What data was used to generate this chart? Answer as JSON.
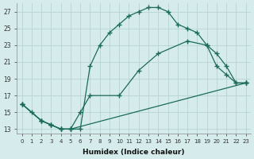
{
  "xlabel": "Humidex (Indice chaleur)",
  "bg_color": "#d6ecec",
  "grid_color": "#b8d4d4",
  "line_color": "#1a6b5a",
  "xlim": [
    -0.5,
    23.5
  ],
  "ylim": [
    12.5,
    28.0
  ],
  "xticks": [
    0,
    1,
    2,
    3,
    4,
    5,
    6,
    7,
    8,
    9,
    10,
    11,
    12,
    13,
    14,
    15,
    16,
    17,
    18,
    19,
    20,
    21,
    22,
    23
  ],
  "yticks": [
    13,
    15,
    17,
    19,
    21,
    23,
    25,
    27
  ],
  "curve_top_x": [
    0,
    1,
    2,
    3,
    4,
    5,
    6,
    7,
    8,
    9,
    10,
    11,
    12,
    13,
    14,
    15,
    16,
    17,
    18,
    19,
    20,
    21,
    22,
    23
  ],
  "curve_top_y": [
    16,
    15,
    14,
    13.5,
    13,
    13,
    13,
    20.5,
    23,
    24.5,
    25.5,
    26.5,
    27,
    27.5,
    27.5,
    27,
    25.5,
    25,
    24.5,
    23,
    20.5,
    19.5,
    18.5,
    18.5
  ],
  "curve_mid_x": [
    0,
    2,
    3,
    4,
    5,
    6,
    7,
    10,
    12,
    14,
    17,
    19,
    20,
    21,
    22,
    23
  ],
  "curve_mid_y": [
    16,
    14,
    13.5,
    13,
    13,
    15,
    17,
    17,
    20,
    22,
    23.5,
    23,
    22,
    20.5,
    18.5,
    18.5
  ],
  "curve_bot_x": [
    0,
    2,
    3,
    4,
    5,
    23
  ],
  "curve_bot_y": [
    16,
    14,
    13.5,
    13,
    13,
    18.5
  ]
}
